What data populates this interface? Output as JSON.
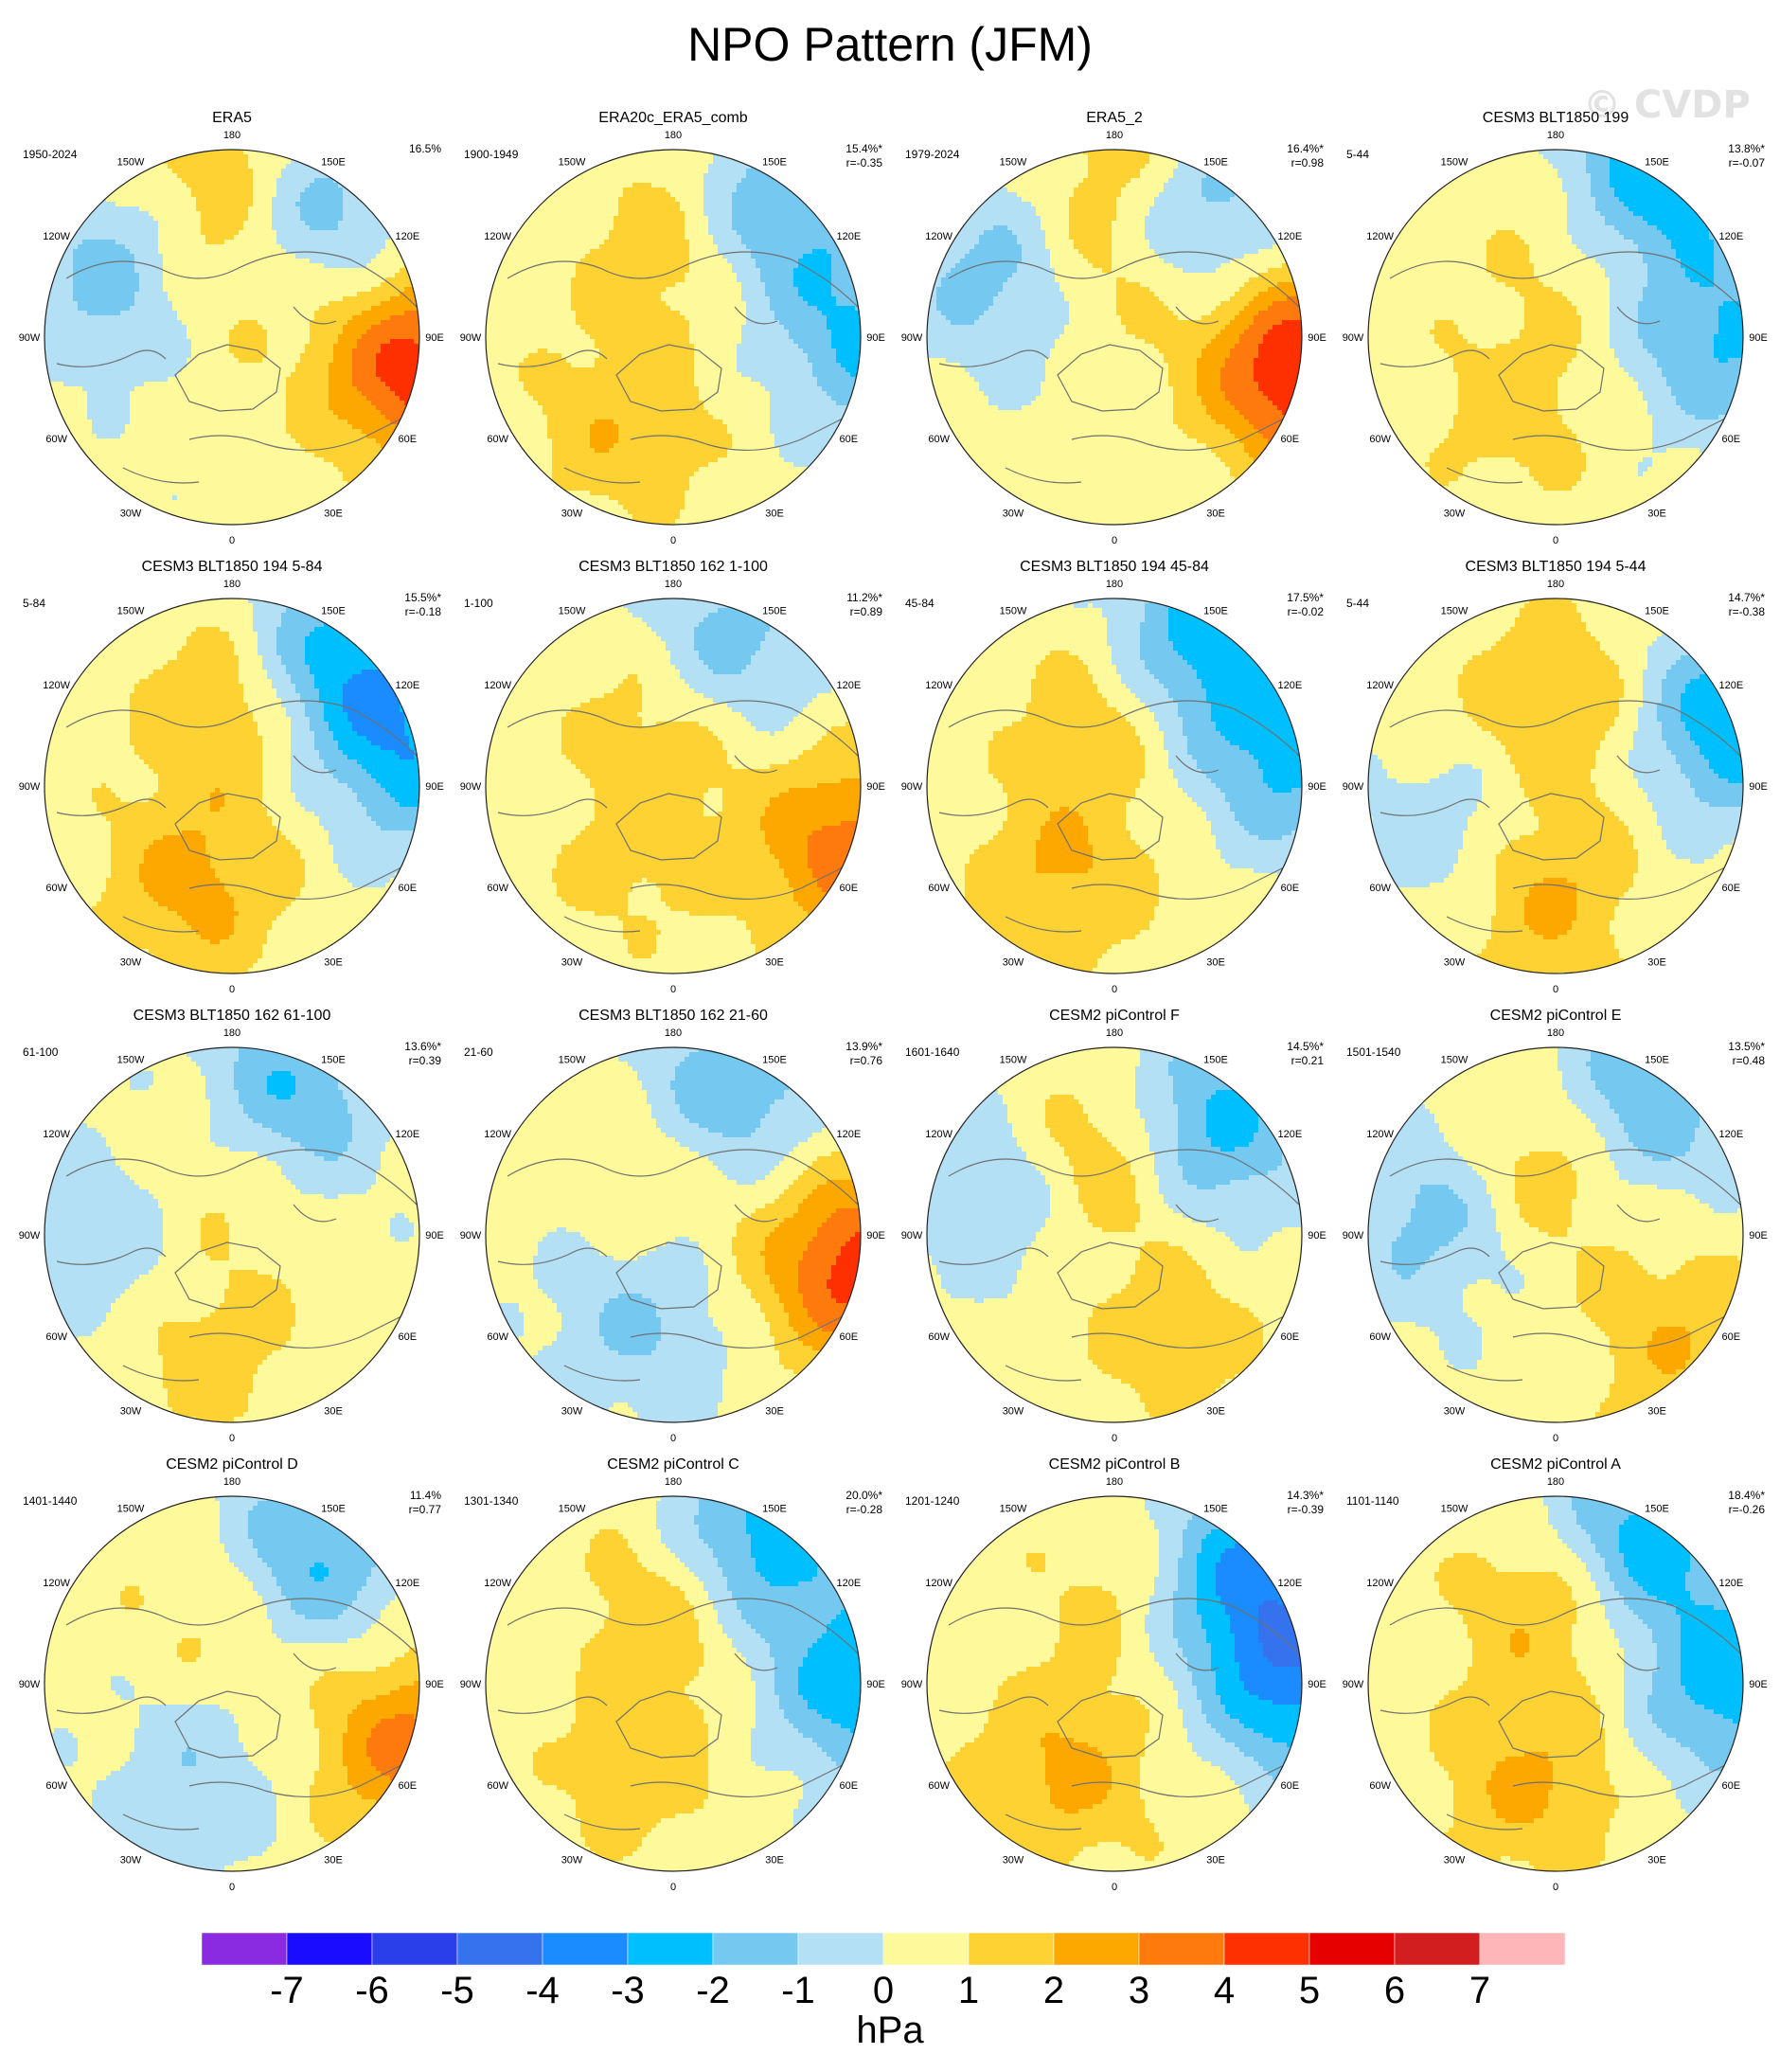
{
  "title": "NPO Pattern (JFM)",
  "watermark": "© CVDP",
  "chart_data": {
    "type": "heatmap",
    "projection": "north polar stereographic",
    "variable": "sea level pressure anomaly",
    "unit_label": "hPa",
    "colorbar": {
      "ticks": [
        "-7",
        "-6",
        "-5",
        "-4",
        "-3",
        "-2",
        "-1",
        "0",
        "1",
        "2",
        "3",
        "4",
        "5",
        "6",
        "7"
      ],
      "colors": [
        "#8a2be2",
        "#1a0dff",
        "#2a3fea",
        "#3572ee",
        "#1a8cff",
        "#00bfff",
        "#75c9f0",
        "#b4e0f5",
        "#fef99a",
        "#fdd232",
        "#fca800",
        "#ff7a0d",
        "#ff3000",
        "#e60000",
        "#d21e1e",
        "#ffb6b8"
      ]
    },
    "panels": [
      {
        "title": "ERA5",
        "years": "1950-2024",
        "pct": "16.5%",
        "r": "",
        "pattern": [
          [
            180,
            55,
            1.9
          ],
          [
            150,
            30,
            -2.6
          ],
          [
            240,
            35,
            -2.0
          ],
          [
            80,
            10,
            4.2
          ],
          [
            180,
            10,
            1.5
          ]
        ]
      },
      {
        "title": "ERA20c_ERA5_comb",
        "years": "1900-1949",
        "pct": "15.4%*",
        "r": "r=-0.35",
        "pattern": [
          [
            180,
            50,
            1.5
          ],
          [
            140,
            20,
            -2.5
          ],
          [
            90,
            5,
            -2.5
          ],
          [
            330,
            45,
            1.5
          ]
        ]
      },
      {
        "title": "ERA5_2",
        "years": "1979-2024",
        "pct": "16.4%*",
        "r": "r=0.98",
        "pattern": [
          [
            180,
            55,
            2.0
          ],
          [
            150,
            30,
            -2.8
          ],
          [
            240,
            35,
            -2.0
          ],
          [
            80,
            10,
            4.8
          ],
          [
            175,
            10,
            1.5
          ]
        ]
      },
      {
        "title": "CESM3 BLT1850 199",
        "years": "5-44",
        "pct": "13.8%*",
        "r": "r=-0.07",
        "pattern": [
          [
            165,
            45,
            1.4
          ],
          [
            150,
            15,
            -3.5
          ],
          [
            90,
            20,
            -2.5
          ],
          [
            330,
            55,
            1.2
          ]
        ]
      },
      {
        "title": "CESM3 BLT1850 194 5-84",
        "years": "5-84",
        "pct": "15.5%*",
        "r": "r=-0.18",
        "pattern": [
          [
            180,
            55,
            1.8
          ],
          [
            140,
            20,
            -3.0
          ],
          [
            100,
            10,
            -2.8
          ],
          [
            340,
            45,
            2.0
          ]
        ]
      },
      {
        "title": "CESM3 BLT1850 162 1-100",
        "years": "1-100",
        "pct": "11.2%*",
        "r": "r=0.89",
        "pattern": [
          [
            180,
            55,
            1.8
          ],
          [
            160,
            30,
            -2.5
          ],
          [
            70,
            10,
            3.2
          ],
          [
            330,
            55,
            1.0
          ]
        ]
      },
      {
        "title": "CESM3 BLT1850 194 45-84",
        "years": "45-84",
        "pct": "17.5%*",
        "r": "r=-0.02",
        "pattern": [
          [
            180,
            55,
            1.6
          ],
          [
            150,
            20,
            -3.2
          ],
          [
            100,
            15,
            -2.6
          ],
          [
            330,
            45,
            1.8
          ]
        ]
      },
      {
        "title": "CESM3 BLT1850 194 5-44",
        "years": "5-44",
        "pct": "14.7%*",
        "r": "r=-0.38",
        "pattern": [
          [
            180,
            55,
            1.8
          ],
          [
            110,
            10,
            -3.3
          ],
          [
            300,
            45,
            -1.5
          ],
          [
            350,
            45,
            2.2
          ]
        ]
      },
      {
        "title": "CESM3 BLT1850 162 61-100",
        "years": "61-100",
        "pct": "13.6%*",
        "r": "r=0.39",
        "pattern": [
          [
            180,
            55,
            1.6
          ],
          [
            160,
            30,
            -3.0
          ],
          [
            270,
            30,
            -1.5
          ],
          [
            350,
            40,
            1.2
          ]
        ]
      },
      {
        "title": "CESM3 BLT1850 162 21-60",
        "years": "21-60",
        "pct": "13.9%*",
        "r": "r=0.76",
        "pattern": [
          [
            180,
            55,
            1.5
          ],
          [
            160,
            30,
            -2.8
          ],
          [
            80,
            10,
            4.2
          ],
          [
            340,
            50,
            -1.5
          ]
        ]
      },
      {
        "title": "CESM2 piControl F",
        "years": "1601-1640",
        "pct": "14.5%*",
        "r": "r=0.21",
        "pattern": [
          [
            180,
            55,
            2.2
          ],
          [
            140,
            30,
            -3.2
          ],
          [
            250,
            35,
            -1.5
          ],
          [
            30,
            40,
            1.2
          ]
        ]
      },
      {
        "title": "CESM2 piControl E",
        "years": "1501-1540",
        "pct": "13.5%*",
        "r": "r=0.48",
        "pattern": [
          [
            175,
            55,
            2.4
          ],
          [
            150,
            30,
            -3.0
          ],
          [
            260,
            35,
            -1.8
          ],
          [
            50,
            20,
            1.6
          ]
        ]
      },
      {
        "title": "CESM2 piControl D",
        "years": "1401-1440",
        "pct": "11.4%",
        "r": "r=0.77",
        "pattern": [
          [
            180,
            55,
            1.6
          ],
          [
            150,
            30,
            -3.0
          ],
          [
            70,
            10,
            3.0
          ],
          [
            340,
            50,
            -1.2
          ]
        ]
      },
      {
        "title": "CESM2 piControl C",
        "years": "1301-1340",
        "pct": "20.0%*",
        "r": "r=-0.28",
        "pattern": [
          [
            180,
            55,
            1.8
          ],
          [
            150,
            20,
            -3.2
          ],
          [
            90,
            10,
            -3.0
          ],
          [
            340,
            50,
            1.2
          ]
        ]
      },
      {
        "title": "CESM2 piControl B",
        "years": "1201-1240",
        "pct": "14.3%*",
        "r": "r=-0.39",
        "pattern": [
          [
            170,
            50,
            1.2
          ],
          [
            130,
            20,
            -3.5
          ],
          [
            90,
            10,
            -3.5
          ],
          [
            330,
            45,
            1.9
          ]
        ]
      },
      {
        "title": "CESM2 piControl A",
        "years": "1101-1140",
        "pct": "18.4%*",
        "r": "r=-0.26",
        "pattern": [
          [
            180,
            55,
            2.0
          ],
          [
            150,
            20,
            -3.2
          ],
          [
            90,
            15,
            -3.0
          ],
          [
            345,
            45,
            1.8
          ]
        ]
      }
    ]
  }
}
